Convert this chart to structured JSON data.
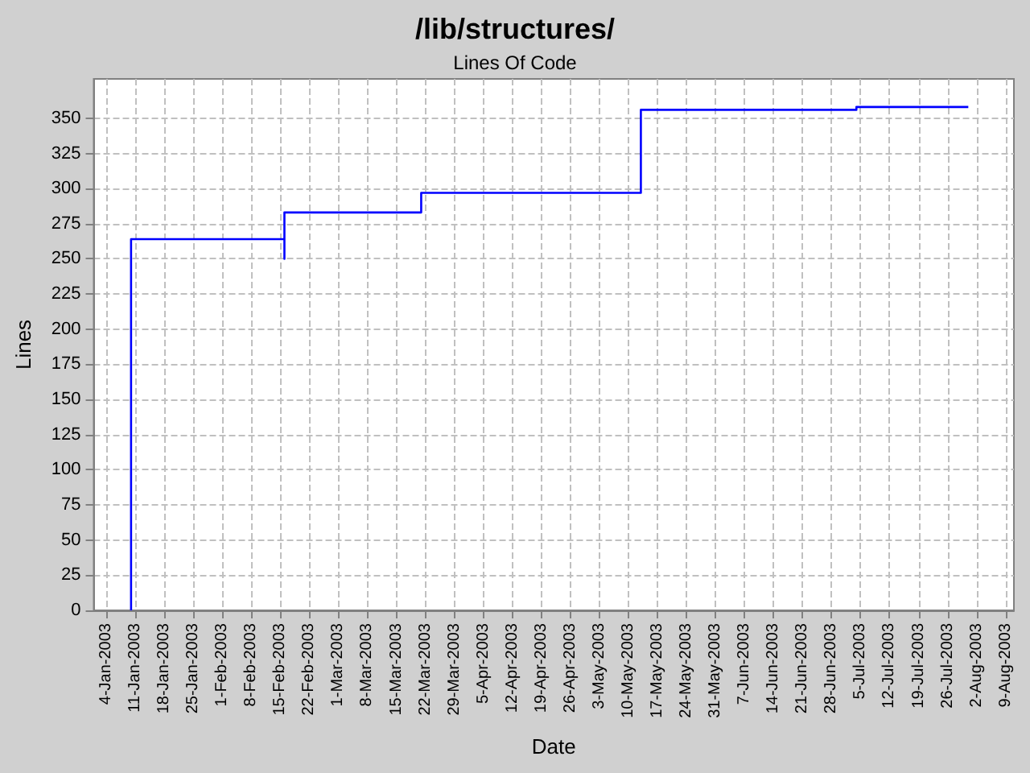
{
  "chart_data": {
    "type": "step",
    "title": "/lib/structures/",
    "subtitle": "Lines Of Code",
    "xlabel": "Date",
    "ylabel": "Lines",
    "x": [
      "2003-01-10",
      "2003-01-10",
      "2003-02-16",
      "2003-02-16",
      "2003-03-21",
      "2003-05-13",
      "2003-07-04",
      "2003-07-31"
    ],
    "series": [
      {
        "color": "#0000ff",
        "values": [
          0,
          264,
          250,
          283,
          297,
          356,
          358,
          358
        ]
      }
    ],
    "xlim": [
      "2003-01-01",
      "2003-08-11"
    ],
    "xticks": [
      {
        "value": "2003-01-04",
        "label": "4-Jan-2003"
      },
      {
        "value": "2003-01-11",
        "label": "11-Jan-2003"
      },
      {
        "value": "2003-01-18",
        "label": "18-Jan-2003"
      },
      {
        "value": "2003-01-25",
        "label": "25-Jan-2003"
      },
      {
        "value": "2003-02-01",
        "label": "1-Feb-2003"
      },
      {
        "value": "2003-02-08",
        "label": "8-Feb-2003"
      },
      {
        "value": "2003-02-15",
        "label": "15-Feb-2003"
      },
      {
        "value": "2003-02-22",
        "label": "22-Feb-2003"
      },
      {
        "value": "2003-03-01",
        "label": "1-Mar-2003"
      },
      {
        "value": "2003-03-08",
        "label": "8-Mar-2003"
      },
      {
        "value": "2003-03-15",
        "label": "15-Mar-2003"
      },
      {
        "value": "2003-03-22",
        "label": "22-Mar-2003"
      },
      {
        "value": "2003-03-29",
        "label": "29-Mar-2003"
      },
      {
        "value": "2003-04-05",
        "label": "5-Apr-2003"
      },
      {
        "value": "2003-04-12",
        "label": "12-Apr-2003"
      },
      {
        "value": "2003-04-19",
        "label": "19-Apr-2003"
      },
      {
        "value": "2003-04-26",
        "label": "26-Apr-2003"
      },
      {
        "value": "2003-05-03",
        "label": "3-May-2003"
      },
      {
        "value": "2003-05-10",
        "label": "10-May-2003"
      },
      {
        "value": "2003-05-17",
        "label": "17-May-2003"
      },
      {
        "value": "2003-05-24",
        "label": "24-May-2003"
      },
      {
        "value": "2003-05-31",
        "label": "31-May-2003"
      },
      {
        "value": "2003-06-07",
        "label": "7-Jun-2003"
      },
      {
        "value": "2003-06-14",
        "label": "14-Jun-2003"
      },
      {
        "value": "2003-06-21",
        "label": "21-Jun-2003"
      },
      {
        "value": "2003-06-28",
        "label": "28-Jun-2003"
      },
      {
        "value": "2003-07-05",
        "label": "5-Jul-2003"
      },
      {
        "value": "2003-07-12",
        "label": "12-Jul-2003"
      },
      {
        "value": "2003-07-19",
        "label": "19-Jul-2003"
      },
      {
        "value": "2003-07-26",
        "label": "26-Jul-2003"
      },
      {
        "value": "2003-08-02",
        "label": "2-Aug-2003"
      },
      {
        "value": "2003-08-09",
        "label": "9-Aug-2003"
      }
    ],
    "ylim": [
      0,
      378
    ],
    "yticks": [
      0,
      25,
      50,
      75,
      100,
      125,
      150,
      175,
      200,
      225,
      250,
      275,
      300,
      325,
      350
    ],
    "grid": true,
    "marker": "none",
    "line_style": "solid"
  }
}
